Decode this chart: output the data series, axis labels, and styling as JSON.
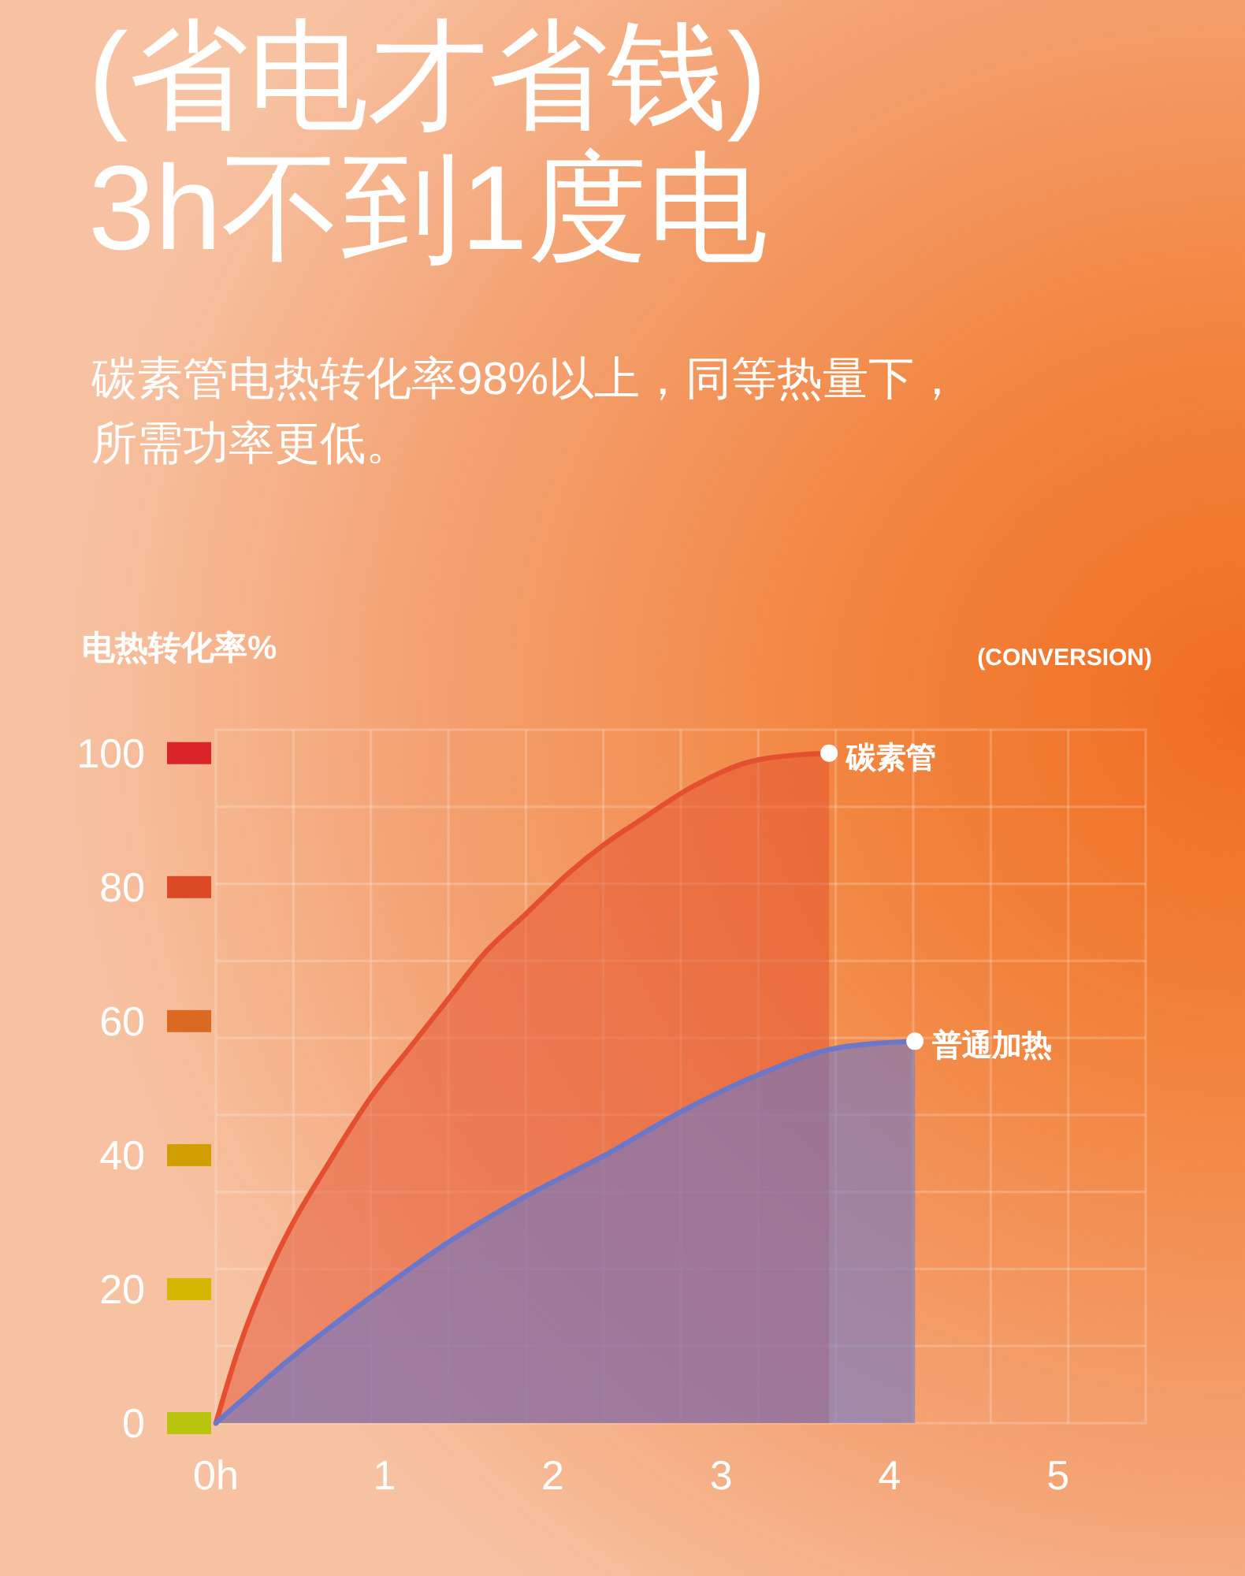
{
  "chart_data": {
    "type": "area",
    "title": "(省电才省钱)",
    "subtitle": "3h不到1度电",
    "ylabel": "电热转化率%",
    "annotations": [
      "碳素管电热转化率98%以上，同等热量下，所需功率更低。",
      "(CONVERSION)"
    ],
    "xlim": [
      0,
      5.52
    ],
    "xticks": [
      {
        "value": 0,
        "label": "0h"
      },
      {
        "value": 0.46,
        "label": null
      },
      {
        "value": 0.92,
        "label": null
      },
      1,
      {
        "value": 1.38,
        "label": null
      },
      {
        "value": 1.84,
        "label": null
      },
      2,
      {
        "value": 2.3,
        "label": null
      },
      {
        "value": 2.76,
        "label": null
      },
      3,
      {
        "value": 3.22,
        "label": null
      },
      {
        "value": 3.68,
        "label": null
      },
      4,
      {
        "value": 4.14,
        "label": null
      },
      {
        "value": 4.6,
        "label": null
      },
      5,
      {
        "value": 5.06,
        "label": null
      }
    ],
    "ylim": [
      0,
      103.5
    ],
    "yticks": [
      0,
      {
        "value": 11.5,
        "label": null
      },
      20,
      {
        "value": 23,
        "label": null
      },
      {
        "value": 34.5,
        "label": null
      },
      40,
      {
        "value": 46,
        "label": null
      },
      {
        "value": 57.5,
        "label": null
      },
      60,
      {
        "value": 69,
        "label": null
      },
      80,
      {
        "value": 80.5,
        "label": null
      },
      {
        "value": 92,
        "label": null
      },
      100
    ],
    "grid": true,
    "series": [
      {
        "name": "碳素管",
        "color": "#e4502f",
        "x": [
          0,
          0.12,
          0.34,
          0.46,
          0.65,
          0.93,
          1.15,
          1.37,
          1.59,
          1.84,
          2.09,
          2.34,
          2.52,
          2.83,
          3.22,
          3.64
        ],
        "values": [
          0,
          10,
          24,
          30,
          38,
          49,
          56,
          63,
          70,
          76,
          82,
          87,
          90,
          95,
          99,
          100
        ]
      },
      {
        "name": "普通加热",
        "color": "#6b77c9",
        "x": [
          0,
          0.46,
          0.93,
          1.38,
          1.85,
          2.31,
          2.8,
          3.22,
          3.69,
          4.15
        ],
        "values": [
          0,
          10,
          19,
          27,
          34,
          40,
          47,
          52,
          56,
          57
        ]
      }
    ]
  }
}
